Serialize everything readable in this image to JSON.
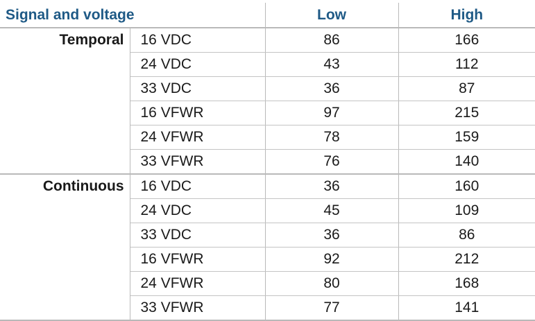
{
  "header": {
    "label": "Signal and voltage",
    "low": "Low",
    "high": "High"
  },
  "groups": [
    {
      "name": "Temporal",
      "rows": [
        {
          "signal": "16 VDC",
          "low": "86",
          "high": "166"
        },
        {
          "signal": "24 VDC",
          "low": "43",
          "high": "112"
        },
        {
          "signal": "33 VDC",
          "low": "36",
          "high": "87"
        },
        {
          "signal": "16 VFWR",
          "low": "97",
          "high": "215"
        },
        {
          "signal": "24 VFWR",
          "low": "78",
          "high": "159"
        },
        {
          "signal": "33 VFWR",
          "low": "76",
          "high": "140"
        }
      ]
    },
    {
      "name": "Continuous",
      "rows": [
        {
          "signal": "16 VDC",
          "low": "36",
          "high": "160"
        },
        {
          "signal": "24 VDC",
          "low": "45",
          "high": "109"
        },
        {
          "signal": "33 VDC",
          "low": "36",
          "high": "86"
        },
        {
          "signal": "16 VFWR",
          "low": "92",
          "high": "212"
        },
        {
          "signal": "24 VFWR",
          "low": "80",
          "high": "168"
        },
        {
          "signal": "33 VFWR",
          "low": "77",
          "high": "141"
        }
      ]
    }
  ],
  "colors": {
    "header_text": "#1f5a86",
    "rule": "#b9b9b9"
  }
}
